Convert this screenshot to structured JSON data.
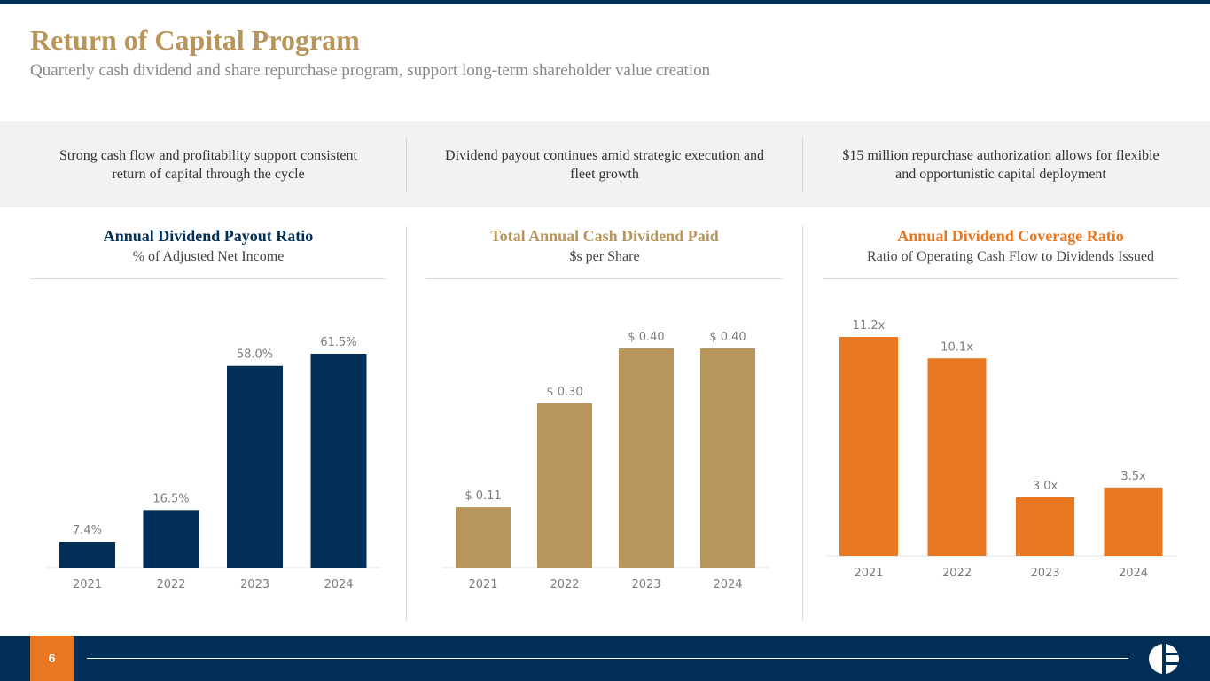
{
  "header": {
    "title": "Return of Capital Program",
    "subtitle": "Quarterly cash dividend and share repurchase program, support long-term shareholder value creation"
  },
  "highlights": [
    {
      "line1": "Strong cash flow and profitability support consistent",
      "line2": "return of capital through the cycle"
    },
    {
      "line1": "Dividend payout continues amid strategic execution and",
      "line2": "fleet growth"
    },
    {
      "line1": "$15 million repurchase authorization allows for flexible",
      "line2": "and opportunistic capital deployment"
    }
  ],
  "colors": {
    "navy": "#012f57",
    "gold": "#b8965b",
    "orange": "#e87722",
    "text_gray": "#8a8a8a"
  },
  "chart_data": [
    {
      "type": "bar",
      "title": "Annual Dividend Payout Ratio",
      "subtitle": "% of Adjusted Net Income",
      "categories": [
        "2021",
        "2022",
        "2023",
        "2024"
      ],
      "values": [
        7.4,
        16.5,
        58.0,
        61.5
      ],
      "labels": [
        "7.4%",
        "16.5%",
        "58.0%",
        "61.5%"
      ],
      "ylim": [
        0,
        61.5
      ],
      "color": "#012f57",
      "title_color": "#012f57"
    },
    {
      "type": "bar",
      "title": "Total Annual Cash Dividend Paid",
      "subtitle": "$s per Share",
      "categories": [
        "2021",
        "2022",
        "2023",
        "2024"
      ],
      "values": [
        0.11,
        0.3,
        0.4,
        0.4
      ],
      "labels": [
        "$ 0.11",
        "$ 0.30",
        "$ 0.40",
        "$ 0.40"
      ],
      "ylim": [
        0,
        0.4
      ],
      "color": "#b8965b",
      "title_color": "#b8965b"
    },
    {
      "type": "bar",
      "title": "Annual Dividend Coverage Ratio",
      "subtitle": "Ratio of Operating Cash Flow to Dividends Issued",
      "categories": [
        "2021",
        "2022",
        "2023",
        "2024"
      ],
      "values": [
        11.2,
        10.1,
        3.0,
        3.5
      ],
      "labels": [
        "11.2x",
        "10.1x",
        "3.0x",
        "3.5x"
      ],
      "ylim": [
        0,
        11.2
      ],
      "color": "#e87722",
      "title_color": "#e87722"
    }
  ],
  "footer": {
    "page_number": "6",
    "logo_icon": "company-logo-icon"
  }
}
